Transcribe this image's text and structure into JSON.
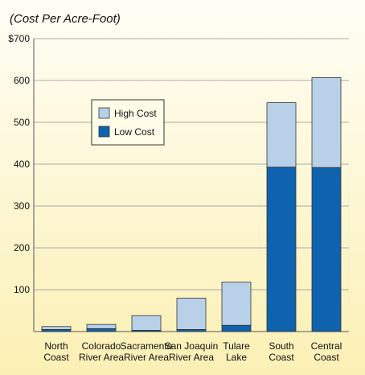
{
  "chart_data": {
    "type": "stacked-bar",
    "title": "(Cost Per Acre-Foot)",
    "categories": [
      [
        "North",
        "Coast"
      ],
      [
        "Colorado",
        "River Area"
      ],
      [
        "Sacramento",
        "River Area"
      ],
      [
        "San Joaquin",
        "River Area"
      ],
      [
        "Tulare",
        "Lake"
      ],
      [
        "South",
        "Coast"
      ],
      [
        "Central",
        "Coast"
      ]
    ],
    "series": [
      {
        "name": "Low Cost",
        "color": "#0f62ad",
        "values": [
          5,
          7,
          3,
          5,
          15,
          393,
          392
        ]
      },
      {
        "name": "High Cost",
        "color": "#b8d1e8",
        "values": [
          7,
          10,
          35,
          75,
          103,
          154,
          215
        ]
      }
    ],
    "ylim": [
      0,
      700
    ],
    "yticks": [
      100,
      200,
      300,
      400,
      500,
      600,
      {
        "value": 700,
        "label": "$700"
      }
    ],
    "grid": true,
    "legend": "upper-left"
  }
}
